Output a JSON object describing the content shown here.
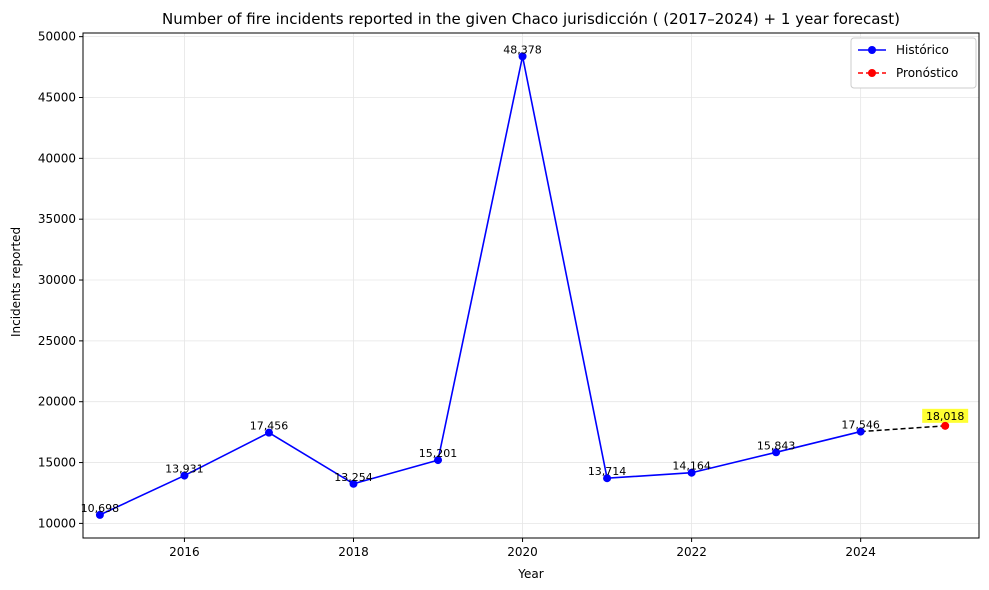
{
  "chart_data": {
    "type": "line",
    "title": "Number of fire incidents reported in the given Chaco jurisdicción  ( (2017–2024)  + 1 year forecast)",
    "xlabel": "Year",
    "ylabel": "Incidents reported",
    "xlim": [
      2014.8,
      2025.4
    ],
    "ylim": [
      8800,
      50300
    ],
    "xticks": [
      2016,
      2018,
      2020,
      2022,
      2024
    ],
    "yticks": [
      10000,
      15000,
      20000,
      25000,
      30000,
      35000,
      40000,
      45000,
      50000
    ],
    "grid": true,
    "legend_position": "top-right",
    "series": [
      {
        "name": "Histórico",
        "color": "#0000ff",
        "line_style": "solid",
        "x": [
          2015,
          2016,
          2017,
          2018,
          2019,
          2020,
          2021,
          2022,
          2023,
          2024
        ],
        "values": [
          10698,
          13931,
          17456,
          13254,
          15201,
          48378,
          13714,
          14164,
          15843,
          17546
        ],
        "labels": [
          "10,698",
          "13,931",
          "17,456",
          "13,254",
          "15,201",
          "48,378",
          "13,714",
          "14,164",
          "15,843",
          "17,546"
        ]
      },
      {
        "name": "Pronóstico",
        "color": "#ff0000",
        "line_style": "dashed",
        "x": [
          2025
        ],
        "values": [
          18018
        ],
        "labels": [
          "18,018"
        ],
        "label_highlight": "#ffff33"
      }
    ],
    "connector": {
      "from": [
        2024,
        17546
      ],
      "to": [
        2025,
        18018
      ],
      "color": "#000000",
      "line_style": "dashed"
    }
  }
}
